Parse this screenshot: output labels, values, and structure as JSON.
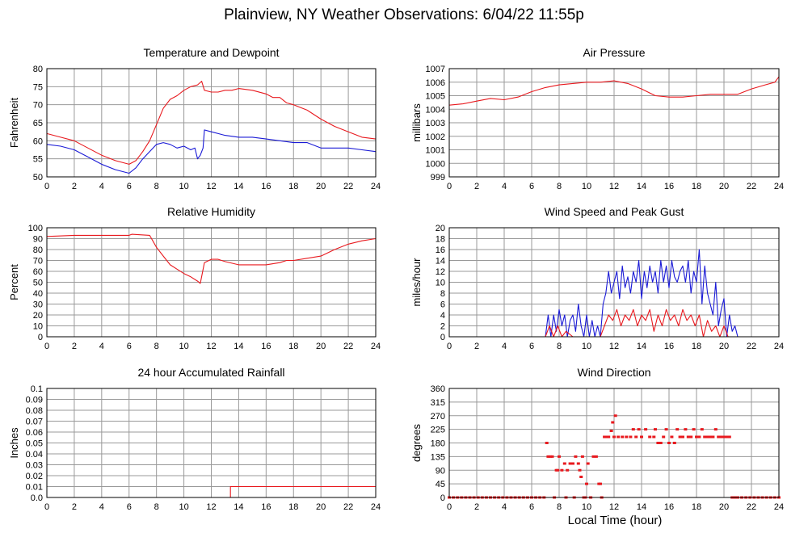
{
  "page": {
    "title": "Plainview, NY Weather Observations: 6/04/22 11:55p",
    "xaxis_label": "Local Time (hour)"
  },
  "colors": {
    "red": "#e8191e",
    "blue": "#1a1ad6",
    "grid": "#999999"
  },
  "chart_data": [
    {
      "type": "line",
      "title": "Temperature and Dewpoint",
      "ylabel": "Fahrenheit",
      "xlim": [
        0,
        24
      ],
      "ylim": [
        50,
        80
      ],
      "xticks": [
        0,
        2,
        4,
        6,
        8,
        10,
        12,
        14,
        16,
        18,
        20,
        22,
        24
      ],
      "yticks": [
        50,
        55,
        60,
        65,
        70,
        75,
        80
      ],
      "series": [
        {
          "color": "#e8191e",
          "x": [
            0,
            1,
            2,
            3,
            4,
            5,
            6,
            6.5,
            7,
            7.5,
            8,
            8.5,
            9,
            9.5,
            10,
            10.5,
            11,
            11.3,
            11.5,
            12,
            12.5,
            13,
            13.5,
            14,
            15,
            16,
            16.5,
            17,
            17.5,
            18,
            19,
            20,
            21,
            22,
            23,
            24
          ],
          "y": [
            62,
            61,
            60,
            58,
            56,
            54.5,
            53.5,
            54.5,
            57,
            60,
            64.5,
            69,
            71.5,
            72.5,
            74,
            75,
            75.5,
            76.5,
            74,
            73.5,
            73.5,
            74,
            74,
            74.5,
            74,
            73,
            72,
            72,
            70.5,
            70,
            68.5,
            66,
            64,
            62.5,
            61,
            60.5
          ]
        },
        {
          "color": "#1a1ad6",
          "x": [
            0,
            1,
            2,
            3,
            4,
            5,
            6,
            6.5,
            7,
            7.5,
            8,
            8.5,
            9,
            9.5,
            10,
            10.5,
            10.8,
            11,
            11.2,
            11.4,
            11.5,
            12,
            12.5,
            13,
            14,
            15,
            16,
            17,
            18,
            19,
            20,
            21,
            22,
            23,
            24
          ],
          "y": [
            59,
            58.5,
            57.5,
            55.5,
            53.5,
            52,
            51,
            52.5,
            55,
            57,
            59,
            59.5,
            59,
            58,
            58.5,
            57.5,
            58,
            55,
            56,
            58,
            63,
            62.5,
            62,
            61.5,
            61,
            61,
            60.5,
            60,
            59.5,
            59.5,
            58,
            58,
            58,
            57.5,
            57
          ]
        }
      ]
    },
    {
      "type": "line",
      "title": "Air Pressure",
      "ylabel": "millibars",
      "xlim": [
        0,
        24
      ],
      "ylim": [
        999,
        1007
      ],
      "xticks": [
        0,
        2,
        4,
        6,
        8,
        10,
        12,
        14,
        16,
        18,
        20,
        22,
        24
      ],
      "yticks": [
        999,
        1000,
        1001,
        1002,
        1003,
        1004,
        1005,
        1006,
        1007
      ],
      "series": [
        {
          "color": "#e8191e",
          "x": [
            0,
            1,
            2,
            3,
            4,
            5,
            6,
            7,
            8,
            9,
            10,
            11,
            12,
            13,
            14,
            15,
            16,
            17,
            18,
            19,
            20,
            21,
            22,
            23,
            23.7,
            24
          ],
          "y": [
            1004.3,
            1004.4,
            1004.6,
            1004.8,
            1004.7,
            1004.9,
            1005.3,
            1005.6,
            1005.8,
            1005.9,
            1006.0,
            1006.0,
            1006.1,
            1005.9,
            1005.5,
            1005.0,
            1004.9,
            1004.9,
            1005.0,
            1005.1,
            1005.1,
            1005.1,
            1005.5,
            1005.8,
            1006.0,
            1006.4
          ]
        }
      ]
    },
    {
      "type": "line",
      "title": "Relative Humidity",
      "ylabel": "Percent",
      "xlim": [
        0,
        24
      ],
      "ylim": [
        0,
        100
      ],
      "xticks": [
        0,
        2,
        4,
        6,
        8,
        10,
        12,
        14,
        16,
        18,
        20,
        22,
        24
      ],
      "yticks": [
        0,
        10,
        20,
        30,
        40,
        50,
        60,
        70,
        80,
        90,
        100
      ],
      "series": [
        {
          "color": "#e8191e",
          "x": [
            0,
            2,
            4,
            6,
            6.2,
            7.5,
            8,
            8.5,
            9,
            9.5,
            10,
            10.5,
            11,
            11.2,
            11.5,
            12,
            12.5,
            13,
            14,
            15,
            16,
            17,
            17.5,
            18,
            19,
            20,
            21,
            22,
            23,
            24
          ],
          "y": [
            92,
            93,
            93,
            93,
            94,
            93,
            82,
            74,
            66,
            62,
            58,
            55,
            51,
            49,
            68,
            71,
            71,
            69,
            66,
            66,
            66,
            68,
            70,
            70,
            72,
            74,
            80,
            85,
            88,
            90
          ]
        }
      ]
    },
    {
      "type": "line",
      "title": "Wind Speed and Peak Gust",
      "ylabel": "miles/hour",
      "xlim": [
        0,
        24
      ],
      "ylim": [
        0,
        20
      ],
      "xticks": [
        0,
        2,
        4,
        6,
        8,
        10,
        12,
        14,
        16,
        18,
        20,
        22,
        24
      ],
      "yticks": [
        0,
        2,
        4,
        6,
        8,
        10,
        12,
        14,
        16,
        18,
        20
      ],
      "series": [
        {
          "color": "#1a1ad6",
          "x": [
            0,
            7.0,
            7.2,
            7.4,
            7.6,
            7.8,
            8.0,
            8.2,
            8.4,
            8.6,
            8.8,
            9.0,
            9.2,
            9.4,
            9.6,
            9.8,
            10.0,
            10.2,
            10.4,
            10.6,
            10.8,
            11.0,
            11.2,
            11.4,
            11.6,
            11.8,
            12.0,
            12.2,
            12.4,
            12.6,
            12.8,
            13.0,
            13.2,
            13.4,
            13.6,
            13.8,
            14.0,
            14.2,
            14.4,
            14.6,
            14.8,
            15.0,
            15.2,
            15.4,
            15.6,
            15.8,
            16.0,
            16.2,
            16.4,
            16.6,
            16.8,
            17.0,
            17.2,
            17.4,
            17.6,
            17.8,
            18.0,
            18.2,
            18.4,
            18.6,
            18.8,
            19.0,
            19.2,
            19.4,
            19.6,
            19.8,
            20.0,
            20.2,
            20.4,
            20.6,
            20.8,
            21.0,
            24
          ],
          "y": [
            0,
            0,
            4,
            0,
            4,
            1,
            5,
            2,
            4,
            0,
            3,
            4,
            1,
            6,
            2,
            0,
            4,
            0,
            3,
            0,
            2,
            0,
            6,
            8,
            12,
            8,
            10,
            12,
            7,
            13,
            9,
            11,
            8,
            12,
            10,
            14,
            7,
            12,
            9,
            13,
            10,
            12,
            8,
            14,
            10,
            13,
            9,
            14,
            11,
            10,
            12,
            13,
            10,
            14,
            8,
            12,
            10,
            16,
            6,
            13,
            8,
            6,
            4,
            10,
            2,
            5,
            7,
            0,
            4,
            1,
            2,
            0,
            0
          ]
        },
        {
          "color": "#e8191e",
          "x": [
            0,
            7.0,
            7.3,
            7.6,
            7.9,
            8.2,
            8.5,
            9.0,
            9.5,
            10.0,
            10.5,
            11.0,
            11.3,
            11.6,
            11.9,
            12.2,
            12.5,
            12.8,
            13.1,
            13.4,
            13.7,
            14.0,
            14.3,
            14.6,
            14.9,
            15.2,
            15.5,
            15.8,
            16.1,
            16.4,
            16.7,
            17.0,
            17.3,
            17.6,
            17.9,
            18.2,
            18.5,
            18.8,
            19.1,
            19.4,
            19.7,
            20.0,
            20.3,
            20.6,
            21.0,
            24
          ],
          "y": [
            0,
            0,
            2,
            0,
            2,
            0,
            1,
            0,
            0,
            0,
            0,
            0,
            2,
            4,
            3,
            5,
            2,
            4,
            3,
            5,
            2,
            4,
            3,
            5,
            1,
            4,
            2,
            5,
            3,
            4,
            2,
            5,
            3,
            4,
            2,
            4,
            0,
            3,
            1,
            2,
            0,
            2,
            0,
            0,
            0,
            0
          ]
        }
      ]
    },
    {
      "type": "line",
      "title": "24 hour Accumulated Rainfall",
      "ylabel": "Inches",
      "xlim": [
        0,
        24
      ],
      "ylim": [
        0,
        0.1
      ],
      "xticks": [
        0,
        2,
        4,
        6,
        8,
        10,
        12,
        14,
        16,
        18,
        20,
        22,
        24
      ],
      "yticks": [
        0.0,
        0.01,
        0.02,
        0.03,
        0.04,
        0.05,
        0.06,
        0.07,
        0.08,
        0.09,
        0.1
      ],
      "ytick_labels": [
        "0.0",
        "0.01",
        "0.02",
        "0.03",
        "0.04",
        "0.05",
        "0.06",
        "0.07",
        "0.08",
        "0.09",
        "0.1"
      ],
      "series": [
        {
          "color": "#e8191e",
          "x": [
            0,
            13.4,
            13.4,
            24
          ],
          "y": [
            0,
            0,
            0.01,
            0.01
          ]
        }
      ]
    },
    {
      "type": "scatter",
      "title": "Wind Direction",
      "ylabel": "degrees",
      "xlim": [
        0,
        24
      ],
      "ylim": [
        0,
        360
      ],
      "xticks": [
        0,
        2,
        4,
        6,
        8,
        10,
        12,
        14,
        16,
        18,
        20,
        22,
        24
      ],
      "yticks": [
        0,
        45,
        90,
        135,
        180,
        225,
        270,
        315,
        360
      ],
      "series": [
        {
          "color": "#e8191e",
          "x": [
            0.0,
            0.3,
            0.6,
            0.9,
            1.2,
            1.5,
            1.8,
            2.1,
            2.4,
            2.7,
            3.0,
            3.3,
            3.6,
            3.9,
            4.2,
            4.5,
            4.8,
            5.1,
            5.4,
            5.7,
            6.0,
            6.3,
            6.6,
            6.9,
            7.1,
            7.2,
            7.35,
            7.5,
            7.65,
            7.8,
            7.9,
            8.0,
            8.2,
            8.4,
            8.5,
            8.6,
            8.8,
            9.0,
            9.1,
            9.2,
            9.4,
            9.5,
            9.6,
            9.7,
            9.8,
            9.9,
            10.0,
            10.1,
            10.3,
            10.5,
            10.7,
            10.9,
            11.0,
            11.1,
            11.3,
            11.5,
            11.6,
            11.8,
            11.9,
            12.0,
            12.1,
            12.3,
            12.6,
            12.9,
            13.2,
            13.4,
            13.6,
            13.8,
            14.0,
            14.3,
            14.6,
            14.9,
            15.0,
            15.2,
            15.4,
            15.6,
            15.8,
            16.0,
            16.2,
            16.4,
            16.6,
            16.8,
            17.0,
            17.2,
            17.4,
            17.6,
            17.8,
            18.0,
            18.2,
            18.4,
            18.6,
            18.8,
            19.0,
            19.2,
            19.4,
            19.6,
            19.8,
            20.0,
            20.2,
            20.4,
            20.6,
            20.8,
            21.0,
            21.3,
            21.6,
            21.9,
            22.2,
            22.5,
            22.8,
            23.1,
            23.4,
            23.7,
            24.0
          ],
          "y": [
            0,
            0,
            0,
            0,
            0,
            0,
            0,
            0,
            0,
            0,
            0,
            0,
            0,
            0,
            0,
            0,
            0,
            0,
            0,
            0,
            0,
            0,
            0,
            0,
            180,
            135,
            135,
            135,
            0,
            90,
            90,
            135,
            90,
            112,
            0,
            90,
            112,
            112,
            0,
            135,
            112,
            90,
            68,
            135,
            0,
            0,
            45,
            112,
            0,
            135,
            135,
            45,
            45,
            0,
            200,
            200,
            200,
            220,
            248,
            200,
            270,
            200,
            200,
            200,
            200,
            225,
            200,
            225,
            200,
            225,
            200,
            200,
            225,
            180,
            180,
            200,
            225,
            180,
            200,
            180,
            225,
            200,
            200,
            225,
            200,
            200,
            225,
            200,
            200,
            225,
            200,
            200,
            200,
            200,
            225,
            200,
            200,
            200,
            200,
            200,
            0,
            0,
            0,
            0,
            0,
            0,
            0,
            0,
            0,
            0,
            0,
            0,
            0
          ]
        }
      ]
    }
  ]
}
